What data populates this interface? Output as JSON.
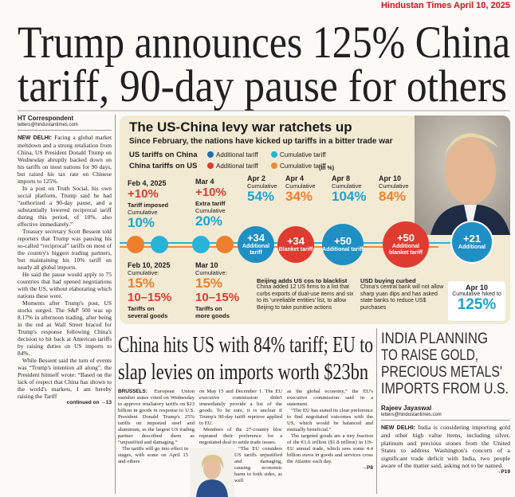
{
  "masthead": "Hindustan Times April 10, 2025",
  "headline": [
    "Trump announces 125% China",
    "tariff, 90-day pause for others"
  ],
  "lead_story": {
    "byline": "HT Correspondent",
    "email": "letters@hindustantimes.com",
    "dateline": "NEW DELHI:",
    "paragraphs": [
      "Facing a global market meltdown and a strong retaliation from China, US President Donald Trump on Wednesday abruptly backed down on his tariffs on most nations for 90 days, but raised his tax rate on Chinese imports to 125%.",
      "In a post on Truth Social, his own social platform, Trump said he had “authorized a 90-day pause, and a substantially lowered reciprocal tariff during this period, of 10%, also effective immediately.”",
      "Treasury secretary Scott Bessent told reporters that Trump was pausing his so-called “reciprocal” tariffs on most of the country's biggest trading partners, but maintaining his 10% tariff on nearly all global imports.",
      "He said the pause would apply to 75 countries that had opened negotiations with the US, without elaborating which nations these were.",
      "Moments after Trump's post, US stocks surged. The S&P 500 was up 8.17% in afternoon trading, after being in the red as Wall Street braced for Trump's response following China's decision to hit back at American tariffs by raising duties on US imports to 84%.",
      "While Bessent said the turn of events was “Trump's intention all along”, the President himself wrote: “Based on the lack of respect that China has shown to the world's markets, I am hereby raising the Tariff"
    ],
    "jump": "continued on →13"
  },
  "infographic": {
    "title": "The US-China levy war ratchets up",
    "subtitle": "Since February, the nations have kicked up tariffs in a bitter trade war",
    "legend": [
      {
        "group": "US tariffs on China",
        "items": [
          "Additional tariff",
          "Cumulative tariff"
        ]
      },
      {
        "group": "China tariffs on US",
        "items": [
          "Additional tariff",
          "Cumulative tariff"
        ]
      }
    ],
    "unit": "(In %)",
    "us_events": [
      {
        "date": "Feb 4, 2025",
        "change": "+10%",
        "label": "Tariff imposed",
        "cumulative_label": "Cumulative",
        "cumulative": "10%"
      },
      {
        "date": "Mar 4",
        "change": "+10%",
        "label": "Extra tariff",
        "cumulative_label": "Cumulative",
        "cumulative": "20%"
      }
    ],
    "china_events": [
      {
        "date": "Feb 10, 2025",
        "cumulative_label": "Cumulative:",
        "cumulative": "15%",
        "range": "10–15%",
        "label": "Tariffs on several goods"
      },
      {
        "date": "Mar 10",
        "cumulative_label": "Cumulative:",
        "cumulative": "15%",
        "range": "10–15%",
        "label": "Tariffs on more goods"
      }
    ],
    "april": [
      {
        "date": "Apr 2",
        "cumulative_label": "Cumulative",
        "cumulative": "54%"
      },
      {
        "date": "Apr 4",
        "cumulative_label": "Cumulative",
        "cumulative": "34%"
      },
      {
        "date": "Apr 8",
        "cumulative_label": "Cumulative",
        "cumulative": "104%"
      },
      {
        "date": "Apr 10",
        "cumulative_label": "Cumulative",
        "cumulative": "84%"
      }
    ],
    "circles": [
      {
        "value": "+34",
        "label": "Additional tariff"
      },
      {
        "value": "+34",
        "label": "Blanket tariff"
      },
      {
        "value": "+50",
        "label": "Additional tariff"
      },
      {
        "value": "+50",
        "label": "Additional blanket tariff"
      },
      {
        "value": "+21",
        "label": "Additional"
      }
    ],
    "final": {
      "date": "Apr 10",
      "label": "Cumulative hiked to",
      "value": "125%"
    },
    "notes": [
      {
        "title": "Beijing adds US cos to blacklist",
        "text": "China added 12 US firms to a list that curbs exports of dual-use items and six to its ‘unreliable entities’ list, to allow Beijing to take punitive actions"
      },
      {
        "title": "USD buying curbed",
        "text": "China's central bank will not allow sharp yuan dips and has asked state banks to reduce US$ purchases"
      }
    ]
  },
  "second_story": {
    "headline": [
      "China hits US with 84% tariff; EU to",
      "slap levies on imports worth $23bn"
    ],
    "dateline": "BRUSSELS:",
    "columns": [
      [
        "European Union member states voted on Wednesday to approve retaliatory tariffs on $23 billion in goods in response to U.S. President Donald Trump's 25% tariffs on imported steel and aluminum, as the largest US trading partner described them as “unjustified and damaging.”",
        "The tariffs will go into effect in stages, with some on April 15 and others"
      ],
      [
        "on May 15 and December 1. The EU executive commission didn't immediately provide a list of the goods. To be sure, it is unclear if Trump's 90-day tariff reprieve applied to EU.",
        "Members of the 27-country bloc repeated their preference for a negotiated deal to settle trade issues.",
        "“The EU considers US tariffs unjustified and damaging, causing economic harm to both sides, as well"
      ],
      [
        "as the global economy,” the EU's executive commission said in a statement.",
        "“The EU has stated its clear preference to find negotiated outcomes with the US, which would be balanced and mutually beneficial.”",
        "The targeted goods are a tiny fraction of the €1.6 trillion ($1.8 trillion) in US-EU annual trade, which sees some 4.4 billion euros in goods and services cross the Atlantic each day."
      ]
    ],
    "jump": "→P8"
  },
  "sidebar": {
    "headline": [
      "INDIA PLANNING",
      "TO RAISE GOLD,",
      "PRECIOUS METALS'",
      "IMPORTS FROM U.S."
    ],
    "byline": "Rajeev Jayaswal",
    "email": "letters@hindustantimes.com",
    "dateline": "NEW DELHI:",
    "paragraph": "India is considering importing gold and other high value items, including silver, platinum and precious stones from the United States to address Washington's concern of a significant trade deficit with India, two people aware of the matter said, asking not to be named.",
    "jump": "→P19"
  }
}
